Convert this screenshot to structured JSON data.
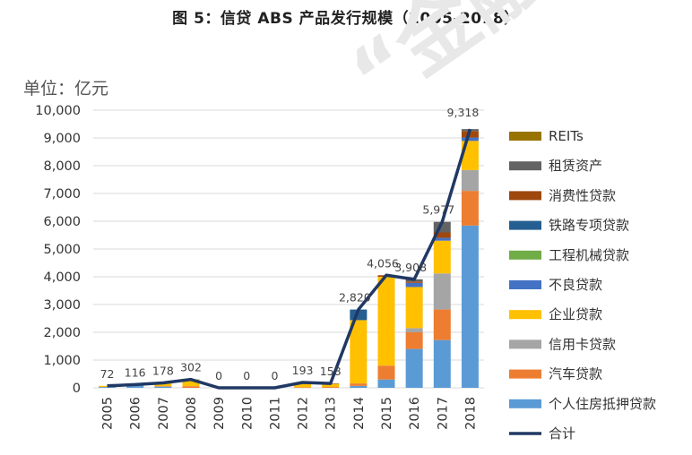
{
  "title": "图 5：信贷 ABS 产品发行规模（2005-2018）",
  "watermark": "“金融",
  "chart_data": {
    "type": "bar",
    "stacked": true,
    "unit_label": "单位：亿元",
    "ylim": [
      0,
      10000
    ],
    "yticks": [
      "0",
      "1,000",
      "2,000",
      "3,000",
      "4,000",
      "5,000",
      "6,000",
      "7,000",
      "8,000",
      "9,000",
      "10,000"
    ],
    "categories": [
      "2005",
      "2006",
      "2007",
      "2008",
      "2009",
      "2010",
      "2011",
      "2012",
      "2013",
      "2014",
      "2015",
      "2016",
      "2017",
      "2018"
    ],
    "series": [
      {
        "name": "个人住房抵押贷款",
        "color": "#5B9BD5",
        "values": [
          30,
          116,
          42,
          0,
          0,
          0,
          0,
          0,
          0,
          68,
          300,
          1400,
          1720,
          5843
        ]
      },
      {
        "name": "汽车贷款",
        "color": "#ED7D31",
        "values": [
          0,
          0,
          20,
          60,
          0,
          0,
          0,
          20,
          30,
          90,
          500,
          600,
          1100,
          1250
        ]
      },
      {
        "name": "信用卡贷款",
        "color": "#A5A5A5",
        "values": [
          0,
          0,
          0,
          0,
          0,
          0,
          0,
          0,
          0,
          0,
          0,
          150,
          1300,
          750
        ]
      },
      {
        "name": "企业贷款",
        "color": "#FFC000",
        "values": [
          42,
          0,
          116,
          240,
          0,
          0,
          0,
          165,
          110,
          2280,
          3200,
          1480,
          1180,
          1050
        ]
      },
      {
        "name": "不良贷款",
        "color": "#4472C4",
        "values": [
          0,
          0,
          0,
          0,
          0,
          0,
          0,
          0,
          0,
          0,
          0,
          150,
          100,
          120
        ]
      },
      {
        "name": "工程机械贷款",
        "color": "#70AD47",
        "values": [
          0,
          0,
          0,
          2,
          0,
          0,
          0,
          3,
          0,
          0,
          0,
          0,
          0,
          0
        ]
      },
      {
        "name": "铁路专项贷款",
        "color": "#255E91",
        "values": [
          0,
          0,
          0,
          0,
          0,
          0,
          0,
          0,
          0,
          382,
          0,
          0,
          0,
          0
        ]
      },
      {
        "name": "消费性贷款",
        "color": "#9E480E",
        "values": [
          0,
          0,
          0,
          0,
          0,
          0,
          0,
          5,
          18,
          0,
          56,
          50,
          197,
          235
        ]
      },
      {
        "name": "租赁资产",
        "color": "#636363",
        "values": [
          0,
          0,
          0,
          0,
          0,
          0,
          0,
          0,
          0,
          0,
          0,
          78,
          380,
          70
        ]
      },
      {
        "name": "REITs",
        "color": "#997300",
        "values": [
          0,
          0,
          0,
          0,
          0,
          0,
          0,
          0,
          0,
          0,
          0,
          0,
          0,
          0
        ]
      }
    ],
    "total": {
      "name": "合计",
      "color": "#203864",
      "values": [
        72,
        116,
        178,
        302,
        0,
        0,
        0,
        193,
        158,
        2820,
        4056,
        3908,
        5977,
        9318
      ],
      "labels": [
        "72",
        "116",
        "178",
        "302",
        "0",
        "0",
        "0",
        "193",
        "158",
        "2,820",
        "4,056",
        "3,908",
        "5,977",
        "9,318"
      ]
    },
    "legend_position": "right",
    "grid": true
  }
}
